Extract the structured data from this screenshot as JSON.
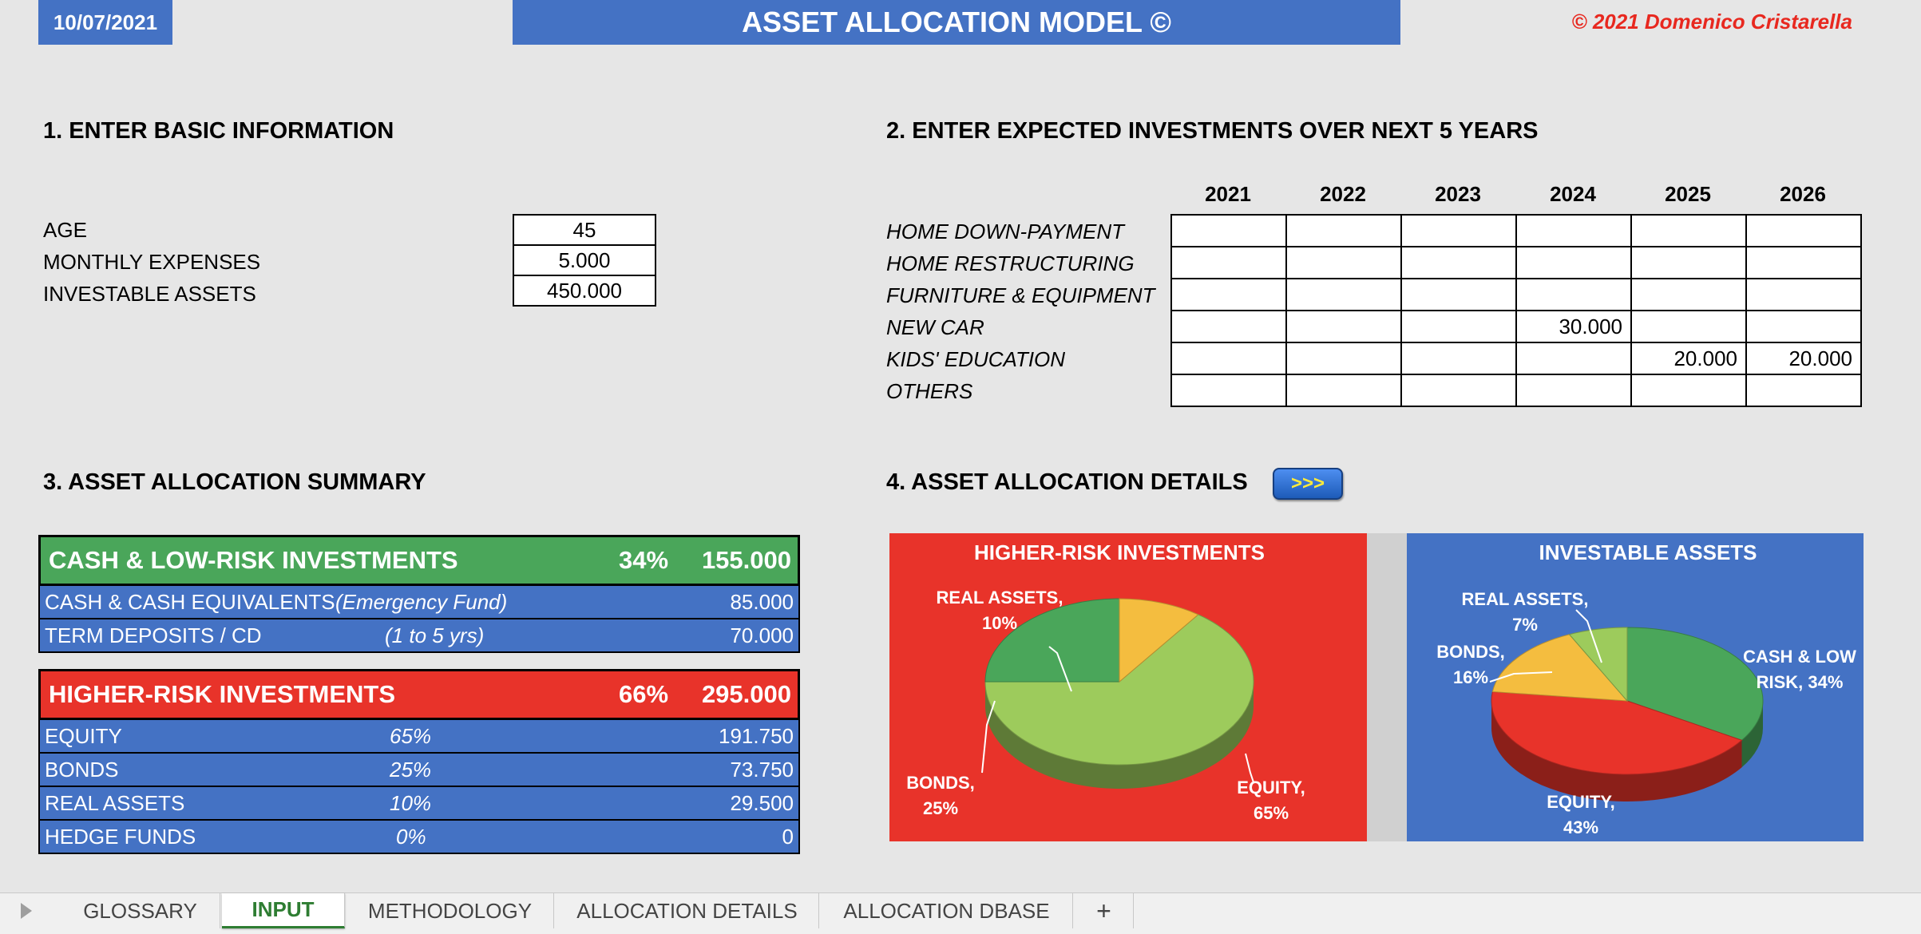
{
  "header": {
    "date": "10/07/2021",
    "title": "ASSET ALLOCATION MODEL ©",
    "copyright": "© 2021 Domenico Cristarella"
  },
  "section1": {
    "title": "1. ENTER BASIC INFORMATION",
    "fields": [
      {
        "label": "AGE",
        "value": "45"
      },
      {
        "label": "MONTHLY EXPENSES",
        "value": "5.000"
      },
      {
        "label": "INVESTABLE ASSETS",
        "value": "450.000"
      }
    ]
  },
  "section2": {
    "title": "2. ENTER EXPECTED INVESTMENTS OVER NEXT 5 YEARS",
    "years": [
      "2021",
      "2022",
      "2023",
      "2024",
      "2025",
      "2026"
    ],
    "rows": [
      {
        "label": "HOME DOWN-PAYMENT",
        "values": [
          "",
          "",
          "",
          "",
          "",
          ""
        ]
      },
      {
        "label": "HOME RESTRUCTURING",
        "values": [
          "",
          "",
          "",
          "",
          "",
          ""
        ]
      },
      {
        "label": "FURNITURE & EQUIPMENT",
        "values": [
          "",
          "",
          "",
          "",
          "",
          ""
        ]
      },
      {
        "label": "NEW CAR",
        "values": [
          "",
          "",
          "",
          "30.000",
          "",
          ""
        ]
      },
      {
        "label": "KIDS' EDUCATION",
        "values": [
          "",
          "",
          "",
          "",
          "20.000",
          "20.000"
        ]
      },
      {
        "label": "OTHERS",
        "values": [
          "",
          "",
          "",
          "",
          "",
          ""
        ]
      }
    ]
  },
  "section3": {
    "title": "3.  ASSET ALLOCATION SUMMARY",
    "low_risk": {
      "label": "CASH & LOW-RISK INVESTMENTS",
      "pct": "34%",
      "value": "155.000",
      "rows": [
        {
          "label": "CASH & CASH EQUIVALENTS",
          "note": "(Emergency Fund)",
          "value": "85.000"
        },
        {
          "label": "TERM DEPOSITS / CD",
          "note": "(1 to 5 yrs)",
          "value": "70.000"
        }
      ]
    },
    "high_risk": {
      "label": "HIGHER-RISK INVESTMENTS",
      "pct": "66%",
      "value": "295.000",
      "rows": [
        {
          "label": "EQUITY",
          "note": "65%",
          "value": "191.750"
        },
        {
          "label": "BONDS",
          "note": "25%",
          "value": "73.750"
        },
        {
          "label": "REAL ASSETS",
          "note": "10%",
          "value": "29.500"
        },
        {
          "label": "HEDGE FUNDS",
          "note": "0%",
          "value": "0"
        }
      ]
    }
  },
  "section4": {
    "title": "4.  ASSET ALLOCATION DETAILS",
    "button_label": ">>>"
  },
  "chart_data": [
    {
      "type": "pie",
      "title": "HIGHER-RISK INVESTMENTS",
      "slices": [
        {
          "name": "EQUITY",
          "value": 65,
          "label": "EQUITY, 65%",
          "color": "#9dcb5c"
        },
        {
          "name": "BONDS",
          "value": 25,
          "label": "BONDS, 25%",
          "color": "#4aa65a"
        },
        {
          "name": "REAL ASSETS",
          "value": 10,
          "label": "REAL ASSETS, 10%",
          "color": "#f4bd3f"
        }
      ],
      "background": "#e8332a"
    },
    {
      "type": "pie",
      "title": "INVESTABLE ASSETS",
      "slices": [
        {
          "name": "CASH & LOW RISK",
          "value": 34,
          "label": "CASH & LOW RISK, 34%",
          "color": "#4aa65a"
        },
        {
          "name": "EQUITY",
          "value": 43,
          "label": "EQUITY, 43%",
          "color": "#e8332a"
        },
        {
          "name": "BONDS",
          "value": 16,
          "label": "BONDS, 16%",
          "color": "#f4bd3f"
        },
        {
          "name": "REAL ASSETS",
          "value": 7,
          "label": "REAL ASSETS, 7%",
          "color": "#9dcb5c"
        }
      ],
      "background": "#4472c4"
    }
  ],
  "tabs": [
    {
      "label": "GLOSSARY",
      "active": false
    },
    {
      "label": "INPUT",
      "active": true
    },
    {
      "label": "METHODOLOGY",
      "active": false
    },
    {
      "label": "ALLOCATION DETAILS",
      "active": false
    },
    {
      "label": "ALLOCATION DBASE",
      "active": false
    },
    {
      "label": "+",
      "active": false
    }
  ],
  "colors": {
    "blue": "#4472c4",
    "green": "#4aa65a",
    "red": "#e8332a",
    "tab_active": "#2e7d32"
  }
}
